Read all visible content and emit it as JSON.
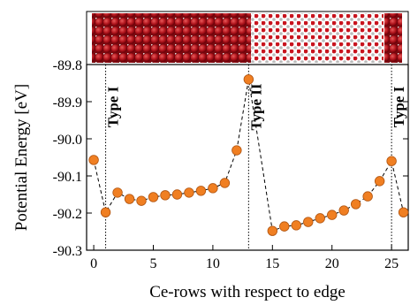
{
  "chart_data": {
    "type": "scatter",
    "ylabel": "Potential Energy [eV]",
    "xlabel": "Ce-rows with respect to edge",
    "x": [
      0,
      1,
      2,
      3,
      4,
      5,
      6,
      7,
      8,
      9,
      10,
      11,
      12,
      13,
      15,
      16,
      17,
      18,
      19,
      20,
      21,
      22,
      23,
      24,
      25,
      26
    ],
    "values": [
      -90.057,
      -90.198,
      -90.145,
      -90.162,
      -90.167,
      -90.157,
      -90.152,
      -90.15,
      -90.145,
      -90.14,
      -90.133,
      -90.119,
      -90.031,
      -89.84,
      -90.248,
      -90.236,
      -90.233,
      -90.224,
      -90.214,
      -90.205,
      -90.193,
      -90.176,
      -90.155,
      -90.114,
      -90.06,
      -90.198
    ],
    "color": "#f07f22",
    "xlim": [
      -0.6,
      26.4
    ],
    "ylim": [
      -90.3,
      -89.8
    ],
    "xticks": [
      0,
      5,
      10,
      15,
      20,
      25
    ],
    "yticks": [
      -90.3,
      -90.2,
      -90.1,
      {
        "value": -90.0,
        "label": "-90.0"
      },
      -89.9,
      -89.8
    ],
    "annotations": [
      {
        "text": "Type I",
        "x": 1
      },
      {
        "text": "Type II",
        "x": 13
      },
      {
        "text": "Type I",
        "x": 25
      }
    ]
  }
}
